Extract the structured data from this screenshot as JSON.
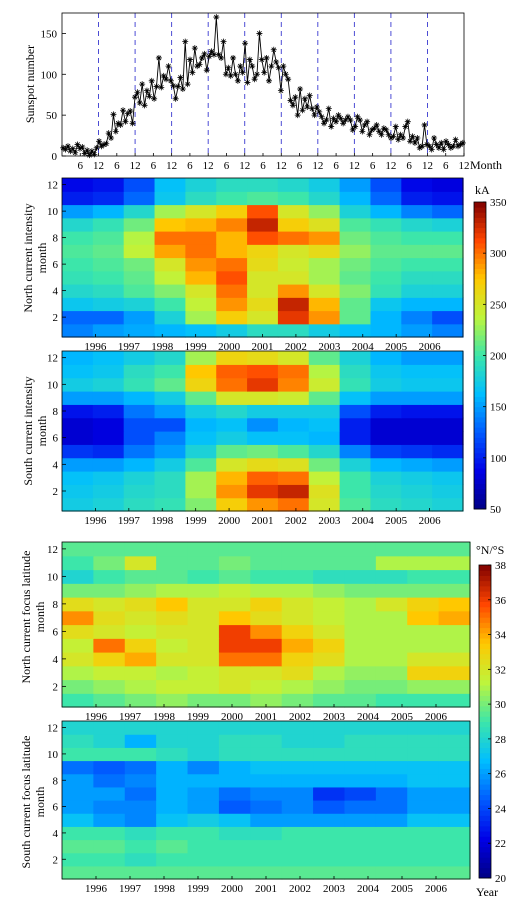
{
  "chart_data": [
    {
      "type": "line",
      "ylabel": "Sunspot number",
      "xlabel": "Month",
      "ylim": [
        0,
        175
      ],
      "yticks": [
        0,
        50,
        100,
        150
      ],
      "xtick_labels": [
        "6",
        "12",
        "6",
        "12",
        "6",
        "12",
        "6",
        "12",
        "6",
        "12",
        "6",
        "12",
        "6",
        "12",
        "6",
        "12",
        "6",
        "12",
        "6",
        "12",
        "6",
        "12"
      ],
      "grid": "dashed vertical lines at each year boundary (month 12)",
      "series": [
        {
          "values": [
            10,
            8,
            12,
            6,
            9,
            4,
            14,
            9,
            11,
            3,
            7,
            1,
            6,
            2,
            10,
            18,
            12,
            14,
            15,
            28,
            22,
            51,
            30,
            40,
            38,
            56,
            42,
            52,
            55,
            40,
            72,
            78,
            65,
            88,
            62,
            80,
            73,
            92,
            70,
            85,
            120,
            84,
            98,
            94,
            110,
            92,
            86,
            70,
            85,
            96,
            82,
            140,
            88,
            118,
            102,
            132,
            110,
            112,
            120,
            125,
            105,
            122,
            128,
            124,
            170,
            124,
            120,
            140,
            100,
            108,
            98,
            120,
            100,
            92,
            110,
            102,
            138,
            90,
            118,
            110,
            94,
            100,
            150,
            118,
            102,
            120,
            92,
            110,
            130,
            115,
            108,
            80,
            110,
            100,
            94,
            68,
            62,
            72,
            50,
            82,
            56,
            70,
            60,
            74,
            58,
            50,
            60,
            54,
            48,
            40,
            44,
            58,
            36,
            46,
            42,
            50,
            46,
            40,
            44,
            48,
            44,
            32,
            36,
            48,
            44,
            30,
            38,
            42,
            26,
            32,
            34,
            38,
            30,
            26,
            34,
            32,
            26,
            22,
            24,
            36,
            20,
            26,
            22,
            36,
            42,
            18,
            24,
            16,
            22,
            10,
            12,
            38,
            14,
            12,
            8,
            22,
            14,
            10,
            16,
            8,
            18,
            14,
            10,
            12,
            20,
            12,
            14,
            16
          ]
        }
      ]
    },
    {
      "type": "heatmap",
      "ylabel": "North current intensity\nmonth",
      "x_labels": [
        "1996",
        "1997",
        "1998",
        "1999",
        "2000",
        "2001",
        "2002",
        "2003",
        "2004",
        "2005",
        "2006"
      ],
      "ylim": [
        1,
        12
      ],
      "yticks": [
        2,
        4,
        6,
        8,
        10,
        12
      ],
      "colorbar": {
        "label": "kA",
        "range": [
          50,
          350
        ],
        "ticks": [
          50,
          100,
          150,
          200,
          250,
          300,
          350
        ]
      },
      "z": [
        [
          140,
          150,
          155,
          160,
          165,
          175,
          190,
          190,
          175,
          165,
          160,
          150,
          140
        ],
        [
          130,
          130,
          150,
          180,
          230,
          270,
          250,
          320,
          290,
          210,
          160,
          140,
          120
        ],
        [
          170,
          175,
          180,
          200,
          240,
          290,
          260,
          330,
          280,
          210,
          170,
          160,
          160
        ],
        [
          185,
          190,
          205,
          220,
          250,
          300,
          250,
          290,
          250,
          220,
          195,
          180,
          180
        ],
        [
          195,
          200,
          210,
          240,
          280,
          310,
          250,
          250,
          230,
          210,
          200,
          190,
          190
        ],
        [
          200,
          205,
          215,
          250,
          290,
          300,
          260,
          245,
          230,
          215,
          205,
          200,
          200
        ],
        [
          205,
          210,
          240,
          285,
          300,
          280,
          265,
          250,
          260,
          225,
          210,
          210,
          210
        ],
        [
          200,
          205,
          235,
          300,
          300,
          280,
          310,
          300,
          290,
          215,
          205,
          200,
          200
        ],
        [
          185,
          195,
          215,
          275,
          280,
          295,
          330,
          270,
          255,
          205,
          195,
          185,
          180
        ],
        [
          150,
          160,
          185,
          230,
          250,
          270,
          310,
          250,
          225,
          180,
          160,
          140,
          130
        ],
        [
          100,
          105,
          130,
          170,
          190,
          200,
          205,
          200,
          185,
          160,
          130,
          100,
          95
        ],
        [
          90,
          95,
          120,
          165,
          180,
          190,
          190,
          185,
          175,
          150,
          120,
          90,
          85
        ]
      ]
    },
    {
      "type": "heatmap",
      "ylabel": "South current intensity\nmonth",
      "x_labels": [
        "1996",
        "1997",
        "1998",
        "1999",
        "2000",
        "2001",
        "2002",
        "2003",
        "2004",
        "2005",
        "2006"
      ],
      "ylim": [
        1,
        12
      ],
      "yticks": [
        2,
        4,
        6,
        8,
        10,
        12
      ],
      "z": [
        [
          175,
          180,
          190,
          195,
          220,
          270,
          290,
          300,
          250,
          205,
          190,
          185,
          180
        ],
        [
          170,
          175,
          185,
          190,
          230,
          290,
          320,
          330,
          255,
          200,
          185,
          180,
          175
        ],
        [
          165,
          170,
          180,
          190,
          230,
          280,
          305,
          300,
          240,
          200,
          180,
          175,
          170
        ],
        [
          150,
          150,
          160,
          175,
          205,
          250,
          260,
          255,
          215,
          180,
          160,
          155,
          150
        ],
        [
          110,
          105,
          135,
          150,
          180,
          210,
          215,
          205,
          185,
          140,
          115,
          110,
          105
        ],
        [
          80,
          85,
          120,
          140,
          165,
          175,
          165,
          165,
          160,
          100,
          80,
          80,
          80
        ],
        [
          80,
          85,
          120,
          120,
          160,
          165,
          145,
          160,
          165,
          100,
          80,
          80,
          80
        ],
        [
          95,
          100,
          135,
          150,
          175,
          185,
          175,
          175,
          175,
          120,
          100,
          95,
          95
        ],
        [
          150,
          150,
          160,
          175,
          210,
          250,
          250,
          245,
          210,
          165,
          150,
          150,
          150
        ],
        [
          175,
          180,
          195,
          210,
          265,
          300,
          320,
          295,
          245,
          195,
          175,
          170,
          170
        ],
        [
          165,
          170,
          190,
          200,
          275,
          305,
          310,
          300,
          235,
          190,
          170,
          165,
          165
        ],
        [
          160,
          165,
          175,
          185,
          230,
          265,
          260,
          250,
          210,
          180,
          160,
          150,
          150
        ]
      ]
    },
    {
      "type": "heatmap",
      "ylabel": "North current focus latitude\nmonth",
      "x_labels": [
        "1996",
        "1997",
        "1998",
        "1999",
        "2000",
        "2001",
        "2002",
        "2003",
        "2004",
        "2005",
        "2006"
      ],
      "ylim": [
        1,
        12
      ],
      "yticks": [
        2,
        4,
        6,
        8,
        10,
        12
      ],
      "colorbar": {
        "label": "°N/°S",
        "range": [
          20,
          38
        ],
        "ticks": [
          20,
          22,
          24,
          26,
          28,
          30,
          32,
          34,
          36,
          38
        ]
      },
      "z": [
        [
          29,
          29.5,
          30,
          30.5,
          30,
          30,
          30.5,
          30,
          29.5,
          29.5,
          29,
          29,
          29
        ],
        [
          30,
          30.5,
          31,
          31.5,
          31.5,
          32,
          31.5,
          31,
          30.5,
          30,
          30,
          30.5,
          30.5
        ],
        [
          31,
          31.5,
          31.5,
          31,
          31.5,
          32,
          32,
          32.5,
          31,
          30.5,
          30.5,
          33,
          33
        ],
        [
          32,
          33,
          34,
          32,
          32,
          35,
          35,
          33,
          32.5,
          31,
          31,
          32,
          32
        ],
        [
          31.5,
          35,
          33,
          31.5,
          32,
          36,
          36,
          34,
          33,
          31,
          31,
          31,
          31
        ],
        [
          32.5,
          32,
          31.5,
          32,
          32,
          36,
          34.5,
          33,
          32,
          31,
          31,
          31,
          31
        ],
        [
          34.5,
          32.5,
          32,
          32.5,
          32,
          33.5,
          32.5,
          32,
          31.5,
          31,
          31,
          33.5,
          34
        ],
        [
          32.5,
          32,
          32.5,
          33.5,
          32,
          32,
          33,
          32,
          31.5,
          31,
          32,
          33,
          33.5
        ],
        [
          30,
          30,
          30.5,
          31,
          31,
          31.5,
          31,
          31,
          30.5,
          30,
          30,
          30,
          30
        ],
        [
          28,
          29,
          29.5,
          29.5,
          29,
          29.5,
          29,
          29,
          28.5,
          28.5,
          28.5,
          29,
          29
        ],
        [
          29,
          30,
          32,
          29.5,
          29.5,
          30,
          29.5,
          29.5,
          29.5,
          29.5,
          31,
          31,
          31
        ],
        [
          29.5,
          29.5,
          29.5,
          29.5,
          29.5,
          29.5,
          29.5,
          29.5,
          29.5,
          29.5,
          29.5,
          29.5,
          29.5
        ]
      ]
    },
    {
      "type": "heatmap",
      "ylabel": "South current focus latitude\nmonth",
      "x_labels": [
        "1996",
        "1997",
        "1998",
        "1999",
        "2000",
        "2001",
        "2002",
        "2003",
        "2004",
        "2005",
        "2006"
      ],
      "ylim": [
        1,
        12
      ],
      "yticks": [
        2,
        4,
        6,
        8,
        10,
        12
      ],
      "z": [
        [
          29.5,
          29.5,
          29.5,
          29.5,
          29.5,
          29.5,
          29.5,
          29.5,
          29.5,
          29.5,
          29.5,
          29.5,
          29.5
        ],
        [
          29,
          29,
          28.5,
          29,
          29,
          29,
          29,
          29,
          29,
          29,
          29,
          29,
          29
        ],
        [
          29.5,
          29.5,
          29,
          29.5,
          29,
          29,
          29,
          29,
          29,
          29,
          29,
          29,
          29
        ],
        [
          29,
          29,
          28.5,
          29,
          29,
          28.5,
          28.5,
          29,
          29,
          29,
          29,
          29,
          29
        ],
        [
          27,
          26,
          25.5,
          27,
          27.5,
          27,
          26,
          26,
          26,
          26,
          26,
          27,
          27
        ],
        [
          26,
          25.5,
          25.5,
          26.5,
          26,
          24.5,
          25,
          25.5,
          24.5,
          25,
          25,
          26,
          26
        ],
        [
          26,
          26,
          25,
          26.5,
          26,
          25,
          25.5,
          25.5,
          23.5,
          24,
          25,
          26,
          26
        ],
        [
          26,
          25,
          25.5,
          26.5,
          26.5,
          26.5,
          26.5,
          26.5,
          26.5,
          26.5,
          26.5,
          27,
          27
        ],
        [
          25,
          24.5,
          25,
          26.5,
          25.5,
          26.5,
          27,
          27,
          27,
          27,
          27,
          27,
          27
        ],
        [
          29,
          29,
          29,
          28.5,
          28,
          28.5,
          28.5,
          28.5,
          28.5,
          28.5,
          28.5,
          28.5,
          28.5
        ],
        [
          28.5,
          28,
          26.5,
          28,
          28,
          28.5,
          28.5,
          28,
          28,
          28.5,
          28.5,
          28.5,
          28.5
        ],
        [
          28,
          28,
          28,
          28,
          28,
          28,
          28,
          28,
          28,
          28,
          28,
          28,
          28
        ]
      ]
    }
  ],
  "labels": {
    "sunspot_ylabel": "Sunspot number",
    "sunspot_xlabel": "Month",
    "north_int_l1": "North current intensity",
    "north_int_l2": "month",
    "south_int_l1": "South current intensity",
    "south_int_l2": "month",
    "north_lat_l1": "North current focus latitude",
    "north_lat_l2": "month",
    "south_lat_l1": "South current focus latitude",
    "south_lat_l2": "month",
    "cb1_unit": "kA",
    "cb2_unit": "°N/°S",
    "year_label": "Year"
  }
}
